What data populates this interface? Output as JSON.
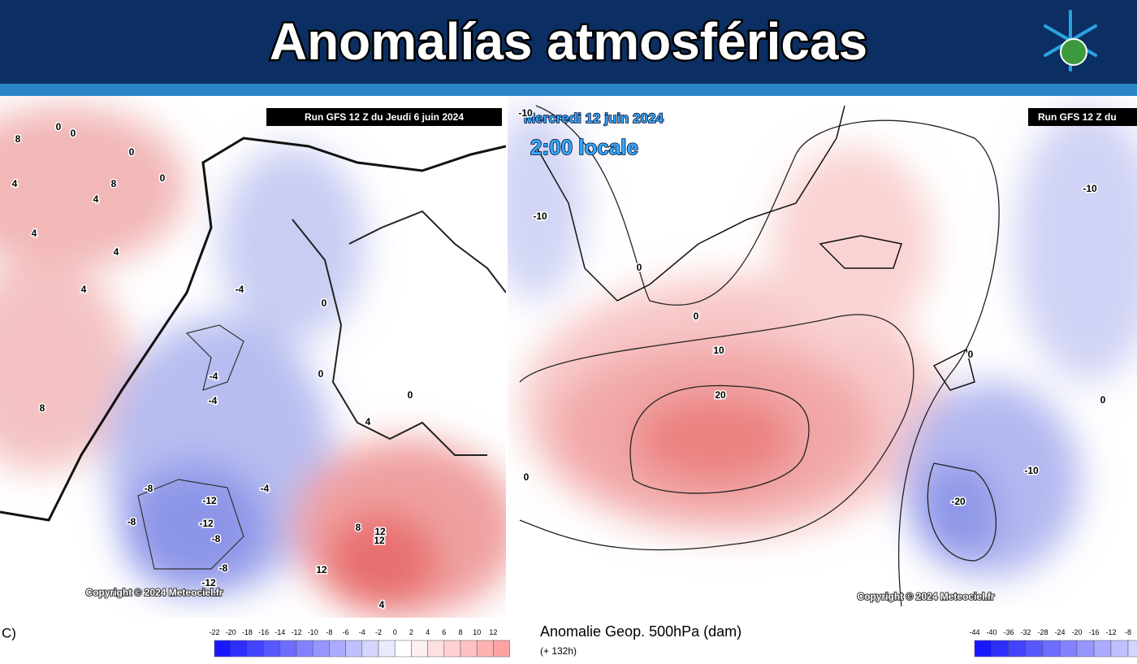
{
  "header": {
    "title": "Anomalías atmosféricas"
  },
  "left_map": {
    "run_label": "Run GFS 12 Z du Jeudi 6 juin 2024",
    "copyright": "Copyright © 2024 Meteociel.fr",
    "units_label": "C)",
    "scale_ticks": [
      -22,
      -20,
      -18,
      -16,
      -14,
      -12,
      -10,
      -8,
      -6,
      -4,
      -2,
      0,
      2,
      4,
      6,
      8,
      10,
      12
    ],
    "contour_labels": [
      "0",
      "0",
      "0",
      "8",
      "4",
      "4",
      "4",
      "8",
      "4",
      "4",
      "8",
      "-4",
      "-4",
      "0",
      "0",
      "-4",
      "-8",
      "-8",
      "-12",
      "-12",
      "-8",
      "-8",
      "-12",
      "8",
      "12",
      "12",
      "12",
      "4",
      "0",
      "4",
      "-4",
      "0"
    ]
  },
  "right_map": {
    "date_label": "Mercredi 12 juin 2024",
    "time_label": "2:00 locale",
    "run_label": "Run GFS 12 Z du",
    "copyright": "Copyright © 2024 Meteociel.fr",
    "variable_label": "Anomalie Geop. 500hPa (dam)",
    "lead_time": "(+ 132h)",
    "scale_ticks": [
      -44,
      -40,
      -36,
      -32,
      -28,
      -24,
      -20,
      -16,
      -12,
      -8
    ],
    "contour_labels": [
      "-10",
      "-10",
      "0",
      "0",
      "10",
      "20",
      "-10",
      "0",
      "0",
      "-10",
      "-20",
      "0"
    ]
  }
}
